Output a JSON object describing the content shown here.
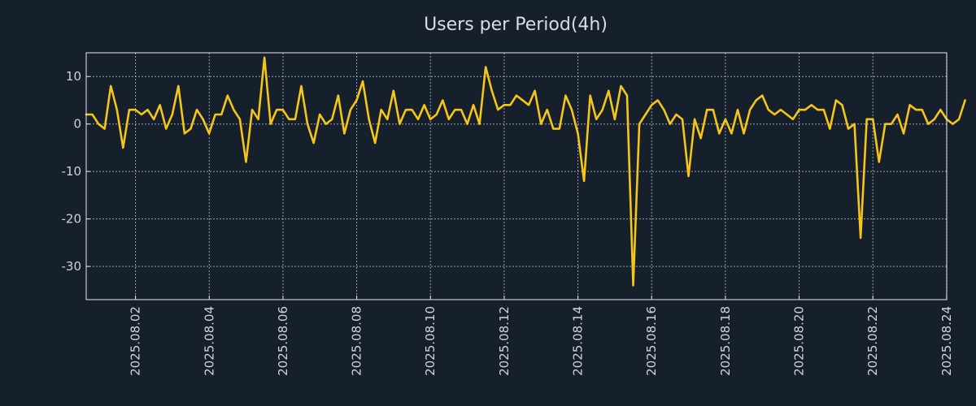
{
  "chart_data": {
    "type": "line",
    "title": "Users per Period(4h)",
    "xlabel": "",
    "ylabel": "",
    "ylim": [
      -37,
      15
    ],
    "yticks": [
      10,
      0,
      -10,
      -20,
      -30
    ],
    "ytick_labels": [
      "10",
      "0",
      "-10",
      "-20",
      "-30"
    ],
    "x_unit": "days since 2025-08-01 00:00",
    "xlim": [
      0.33,
      23.67
    ],
    "xticks": [
      1.667,
      3.667,
      5.667,
      7.667,
      9.667,
      11.667,
      13.667,
      15.667,
      17.667,
      19.667,
      21.667,
      23.667
    ],
    "xtick_labels": [
      "2025.08.02",
      "2025.08.04",
      "2025.08.06",
      "2025.08.08",
      "2025.08.10",
      "2025.08.12",
      "2025.08.14",
      "2025.08.16",
      "2025.08.18",
      "2025.08.20",
      "2025.08.22",
      "2025.08.24"
    ],
    "grid": true,
    "series": [
      {
        "name": "Users per Period(4h)",
        "color": "#f5c518",
        "x_start": 0.33,
        "x_step": 0.1667,
        "values": [
          2,
          2,
          0,
          -1,
          8,
          3,
          -5,
          3,
          3,
          2,
          3,
          1,
          4,
          -1,
          2,
          8,
          -2,
          -1,
          3,
          1,
          -2,
          2,
          2,
          6,
          3,
          1,
          -8,
          3,
          1,
          14,
          0,
          3,
          3,
          1,
          1,
          8,
          0,
          -4,
          2,
          0,
          1,
          6,
          -2,
          3,
          5,
          9,
          1,
          -4,
          3,
          1,
          7,
          0,
          3,
          3,
          1,
          4,
          1,
          2,
          5,
          1,
          3,
          3,
          0,
          4,
          0,
          12,
          7,
          3,
          4,
          4,
          6,
          5,
          4,
          7,
          0,
          3,
          -1,
          -1,
          6,
          3,
          -2,
          -12,
          6,
          1,
          3,
          7,
          1,
          8,
          6,
          -34,
          0,
          2,
          4,
          5,
          3,
          0,
          2,
          1,
          -11,
          1,
          -3,
          3,
          3,
          -2,
          1,
          -2,
          3,
          -2,
          3,
          5,
          6,
          3,
          2,
          3,
          2,
          1,
          3,
          3,
          4,
          3,
          3,
          -1,
          5,
          4,
          -1,
          0,
          -24,
          1,
          1,
          -8,
          0,
          0,
          2,
          -2,
          4,
          3,
          3,
          0,
          1,
          3,
          1,
          0,
          1,
          5
        ]
      }
    ]
  }
}
